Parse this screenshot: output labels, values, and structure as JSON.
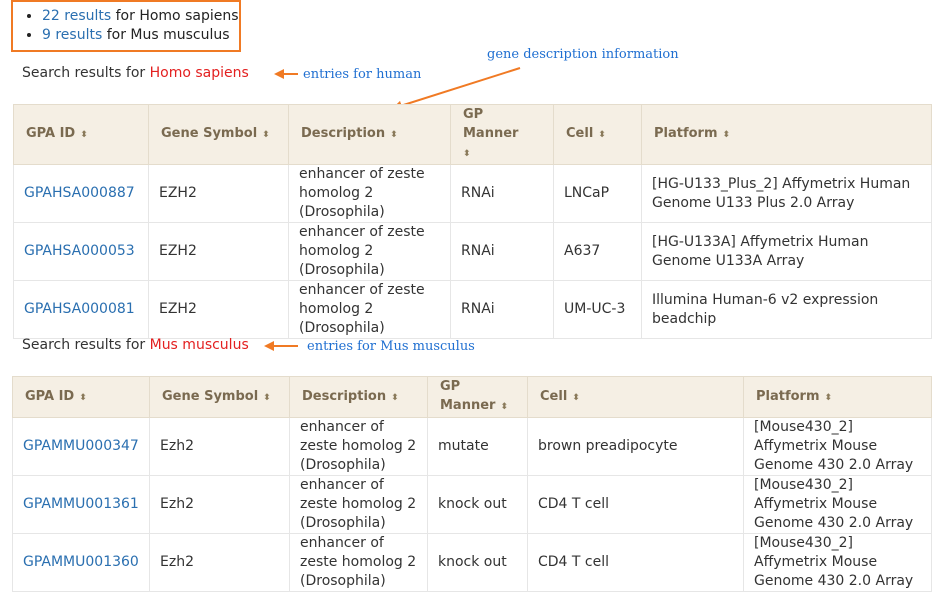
{
  "summary": {
    "items": [
      {
        "count": "22 results",
        "text": " for Homo sapiens"
      },
      {
        "count": "9 results",
        "text": " for Mus musculus"
      }
    ]
  },
  "annotations": {
    "gene_description": "gene description information",
    "entries_human": "entries for human",
    "entries_mouse": "entries for Mus musculus",
    "arrow_color": "#f07a24",
    "text_color": "#1f6fd1"
  },
  "human": {
    "heading_prefix": "Search results for ",
    "species": "Homo sapiens",
    "columns": [
      "GPA ID",
      "Gene Symbol",
      "Description",
      "GP Manner",
      "Cell",
      "Platform"
    ],
    "sort_icon": "⬍",
    "rows": [
      {
        "id": "GPAHSA000887",
        "symbol": "EZH2",
        "description": "enhancer of zeste homolog 2 (Drosophila)",
        "manner": "RNAi",
        "cell": "LNCaP",
        "platform": "[HG-U133_Plus_2] Affymetrix Human Genome U133 Plus 2.0 Array"
      },
      {
        "id": "GPAHSA000053",
        "symbol": "EZH2",
        "description": "enhancer of zeste homolog 2 (Drosophila)",
        "manner": "RNAi",
        "cell": "A637",
        "platform": "[HG-U133A] Affymetrix Human Genome U133A Array"
      },
      {
        "id": "GPAHSA000081",
        "symbol": "EZH2",
        "description": "enhancer of zeste homolog 2 (Drosophila)",
        "manner": "RNAi",
        "cell": "UM-UC-3",
        "platform": "Illumina Human-6 v2 expression beadchip"
      }
    ]
  },
  "mouse": {
    "heading_prefix": "Search results for ",
    "species": "Mus musculus",
    "columns": [
      "GPA ID",
      "Gene Symbol",
      "Description",
      "GP Manner",
      "Cell",
      "Platform"
    ],
    "sort_icon": "⬍",
    "rows": [
      {
        "id": "GPAMMU000347",
        "symbol": "Ezh2",
        "description": "enhancer of zeste homolog 2 (Drosophila)",
        "manner": "mutate",
        "cell": "brown preadipocyte",
        "platform": "[Mouse430_2] Affymetrix Mouse Genome 430 2.0 Array"
      },
      {
        "id": "GPAMMU001361",
        "symbol": "Ezh2",
        "description": "enhancer of zeste homolog 2 (Drosophila)",
        "manner": "knock out",
        "cell": "CD4 T cell",
        "platform": "[Mouse430_2] Affymetrix Mouse Genome 430 2.0 Array"
      },
      {
        "id": "GPAMMU001360",
        "symbol": "Ezh2",
        "description": "enhancer of zeste homolog 2 (Drosophila)",
        "manner": "knock out",
        "cell": "CD4 T cell",
        "platform": "[Mouse430_2] Affymetrix Mouse Genome 430 2.0 Array"
      }
    ]
  }
}
